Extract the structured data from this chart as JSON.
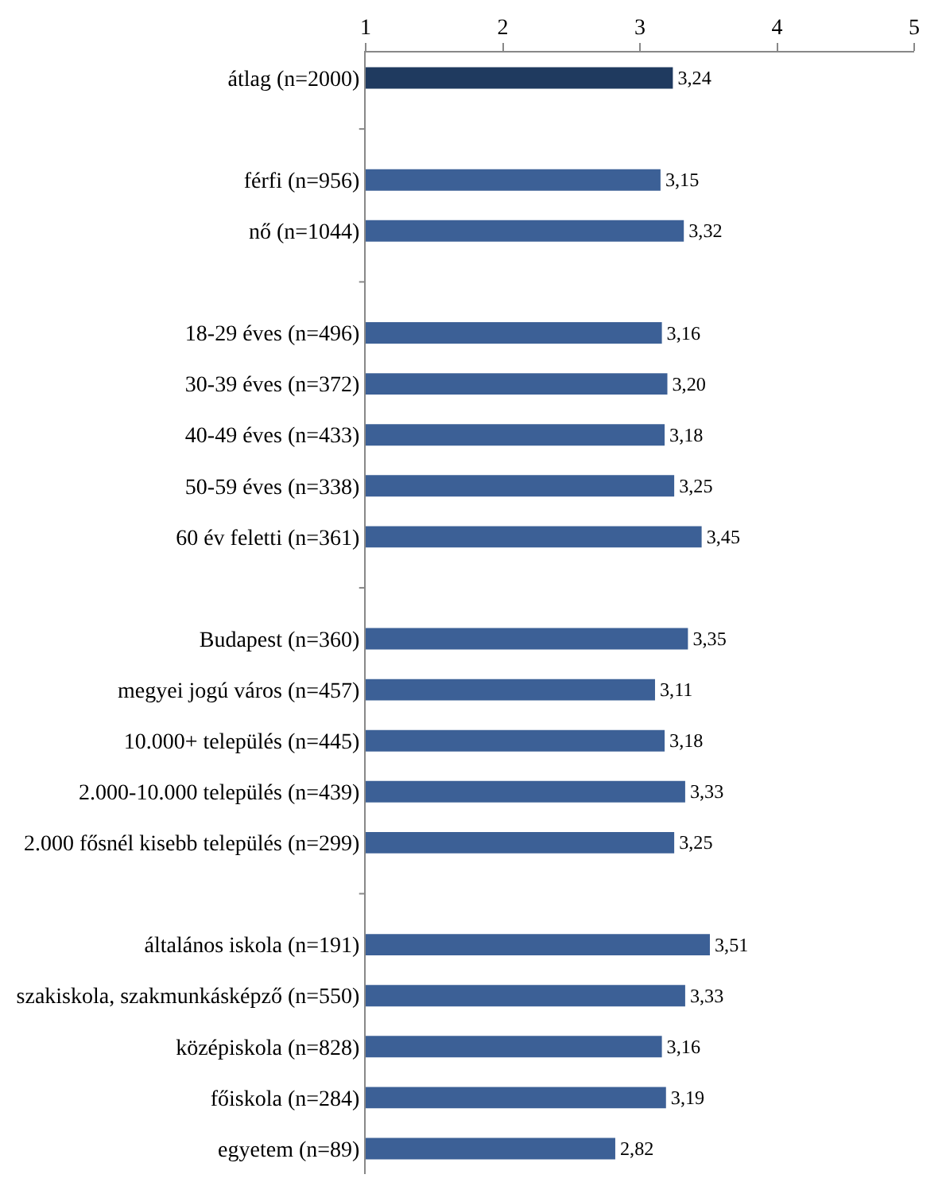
{
  "chart_data": {
    "type": "bar",
    "orientation": "horizontal",
    "categories": [
      "átlag (n=2000)",
      null,
      "férfi (n=956)",
      "nő (n=1044)",
      null,
      "18-29 éves (n=496)",
      "30-39 éves (n=372)",
      "40-49 éves (n=433)",
      "50-59 éves (n=338)",
      "60 év feletti (n=361)",
      null,
      "Budapest (n=360)",
      "megyei jogú város (n=457)",
      "10.000+ település (n=445)",
      "2.000-10.000 település (n=439)",
      "2.000 fősnél kisebb település (n=299)",
      null,
      "általános iskola (n=191)",
      "szakiskola, szakmunkásképző (n=550)",
      "középiskola (n=828)",
      "főiskola (n=284)",
      "egyetem (n=89)"
    ],
    "values": [
      3.24,
      null,
      3.15,
      3.32,
      null,
      3.16,
      3.2,
      3.18,
      3.25,
      3.45,
      null,
      3.35,
      3.11,
      3.18,
      3.33,
      3.25,
      null,
      3.51,
      3.33,
      3.16,
      3.19,
      2.82
    ],
    "value_labels": [
      "3,24",
      null,
      "3,15",
      "3,32",
      null,
      "3,16",
      "3,20",
      "3,18",
      "3,25",
      "3,45",
      null,
      "3,35",
      "3,11",
      "3,18",
      "3,33",
      "3,25",
      null,
      "3,51",
      "3,33",
      "3,16",
      "3,19",
      "2,82"
    ],
    "colors": [
      "#1f3a5f",
      null,
      "#3c6096",
      "#3c6096",
      null,
      "#3c6096",
      "#3c6096",
      "#3c6096",
      "#3c6096",
      "#3c6096",
      null,
      "#3c6096",
      "#3c6096",
      "#3c6096",
      "#3c6096",
      "#3c6096",
      null,
      "#3c6096",
      "#3c6096",
      "#3c6096",
      "#3c6096",
      "#3c6096"
    ],
    "xlim": [
      1,
      5
    ],
    "xticks": [
      1,
      2,
      3,
      4,
      5
    ],
    "legend": false
  }
}
